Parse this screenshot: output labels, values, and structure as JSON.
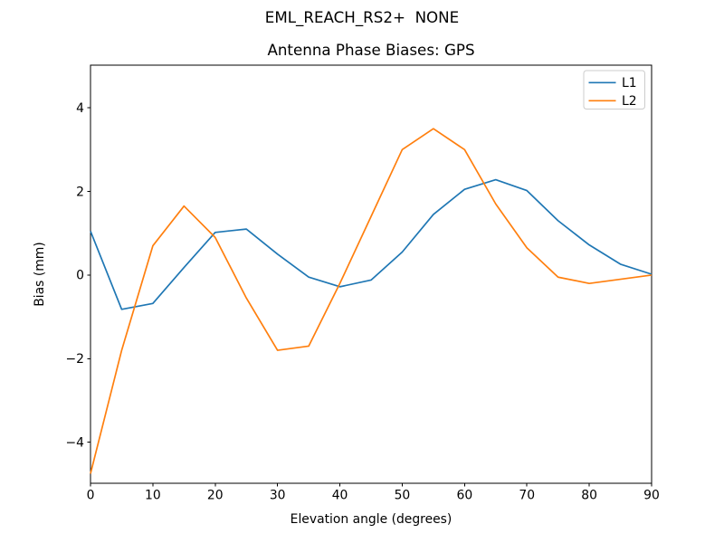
{
  "figure": {
    "suptitle": "EML_REACH_RS2+  NONE"
  },
  "chart_data": {
    "type": "line",
    "suptitle": "EML_REACH_RS2+  NONE",
    "title": "Antenna Phase Biases: GPS",
    "xlabel": "Elevation angle (degrees)",
    "ylabel": "Bias (mm)",
    "xlim": [
      0,
      90
    ],
    "ylim": [
      -4.98,
      5.02
    ],
    "xticks": [
      0,
      10,
      20,
      30,
      40,
      50,
      60,
      70,
      80,
      90
    ],
    "yticks": [
      -4,
      -2,
      0,
      2,
      4
    ],
    "grid": false,
    "legend_position": "upper right",
    "background": "#ffffff",
    "x": [
      0,
      5,
      10,
      15,
      20,
      25,
      30,
      35,
      40,
      45,
      50,
      55,
      60,
      65,
      70,
      75,
      80,
      85,
      90
    ],
    "series": [
      {
        "name": "L1",
        "color": "#1f77b4",
        "values": [
          1.05,
          -0.82,
          -0.68,
          0.18,
          1.02,
          1.1,
          0.5,
          -0.05,
          -0.28,
          -0.12,
          0.55,
          1.45,
          2.05,
          2.28,
          2.02,
          1.3,
          0.72,
          0.26,
          0.02
        ]
      },
      {
        "name": "L2",
        "color": "#ff7f0e",
        "values": [
          -4.75,
          -1.8,
          0.7,
          1.65,
          0.9,
          -0.55,
          -1.8,
          -1.7,
          -0.2,
          1.4,
          3.0,
          3.5,
          3.0,
          1.7,
          0.65,
          -0.05,
          -0.2,
          -0.1,
          0.0
        ]
      }
    ]
  }
}
